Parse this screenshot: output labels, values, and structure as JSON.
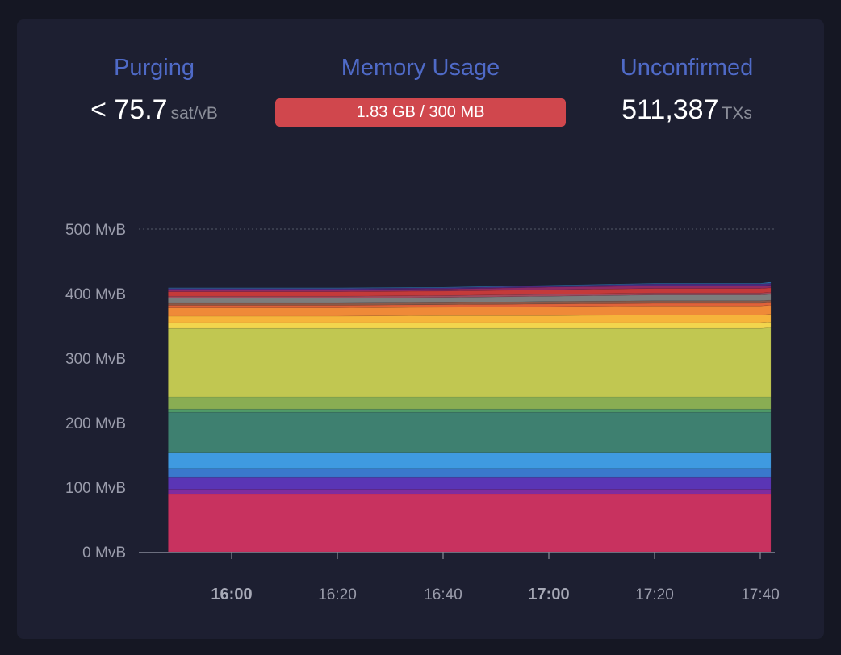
{
  "stats": {
    "purging": {
      "title": "Purging",
      "value": "< 75.7",
      "unit": "sat/vB"
    },
    "memory": {
      "title": "Memory Usage",
      "label": "1.83 GB / 300 MB",
      "used_gb": 1.83,
      "max_mb": 300
    },
    "unconfirmed": {
      "title": "Unconfirmed",
      "value": "511,387",
      "unit": "TXs"
    }
  },
  "colors": {
    "title_accent": "#4f6ac7",
    "memory_bar": "#d0474d",
    "axis_text": "#9a9cab",
    "grid": "#4a4d5e"
  },
  "chart_data": {
    "type": "area",
    "stacked": true,
    "x": [
      "15:48",
      "15:55",
      "16:00",
      "16:20",
      "16:40",
      "17:00",
      "17:20",
      "17:40",
      "17:42"
    ],
    "xticks": [
      "16:00",
      "16:20",
      "16:40",
      "17:00",
      "17:20",
      "17:40"
    ],
    "xticks_bold": [
      "16:00",
      "17:00"
    ],
    "y_unit": "MvB",
    "yticks": [
      "0 MvB",
      "100 MvB",
      "200 MvB",
      "300 MvB",
      "400 MvB",
      "500 MvB"
    ],
    "ylim": [
      0,
      500
    ],
    "grid": "top-only",
    "series": [
      {
        "color": "#c8325f",
        "values": [
          89,
          89,
          89,
          89,
          89,
          89,
          89,
          89,
          89
        ]
      },
      {
        "color": "#7f2c9e",
        "values": [
          8,
          8,
          8,
          8,
          8,
          8,
          8,
          8,
          8
        ]
      },
      {
        "color": "#5a35b5",
        "values": [
          19,
          19,
          19,
          19,
          19,
          19,
          19,
          19,
          19
        ]
      },
      {
        "color": "#3a78cc",
        "values": [
          13,
          13,
          13,
          13,
          13,
          13,
          13,
          13,
          13
        ]
      },
      {
        "color": "#3f9ae0",
        "values": [
          25,
          25,
          25,
          25,
          25,
          25,
          25,
          25,
          25
        ]
      },
      {
        "color": "#3e8070",
        "values": [
          62,
          62,
          62,
          62,
          62,
          62,
          62,
          62,
          62
        ]
      },
      {
        "color": "#4f9a68",
        "values": [
          5,
          5,
          5,
          5,
          5,
          5,
          5,
          5,
          5
        ]
      },
      {
        "color": "#89ad53",
        "values": [
          19,
          19,
          19,
          19,
          19,
          19,
          19,
          19,
          19
        ]
      },
      {
        "color": "#c1c751",
        "values": [
          106,
          106,
          106,
          106,
          106,
          106,
          106,
          106,
          107
        ]
      },
      {
        "color": "#f2d54d",
        "values": [
          9,
          9,
          9,
          9,
          9,
          9,
          9,
          9,
          9
        ]
      },
      {
        "color": "#f6b43b",
        "values": [
          10,
          10,
          10,
          10,
          11,
          11,
          12,
          12,
          12
        ]
      },
      {
        "color": "#ef8a38",
        "values": [
          13,
          13,
          13,
          13,
          13,
          14,
          14,
          14,
          14
        ]
      },
      {
        "color": "#e0623a",
        "values": [
          4,
          4,
          4,
          4,
          4,
          4,
          4,
          4,
          4
        ]
      },
      {
        "color": "#8a5a4a",
        "values": [
          3,
          3,
          3,
          3,
          3,
          4,
          4,
          4,
          4
        ]
      },
      {
        "color": "#7d7d7d",
        "values": [
          8,
          8,
          8,
          8,
          8,
          8,
          9,
          9,
          9
        ]
      },
      {
        "color": "#a14a5e",
        "values": [
          3,
          3,
          3,
          3,
          3,
          3,
          3,
          3,
          3
        ]
      },
      {
        "color": "#c43a3a",
        "values": [
          7,
          7,
          7,
          7,
          7,
          7,
          7,
          7,
          7
        ]
      },
      {
        "color": "#8e2a63",
        "values": [
          3,
          3,
          3,
          3,
          3,
          4,
          4,
          4,
          4
        ]
      },
      {
        "color": "#4b2b7e",
        "values": [
          2,
          2,
          2,
          2,
          2,
          2,
          3,
          3,
          3
        ]
      },
      {
        "color": "#2d6fa6",
        "values": [
          1,
          1,
          1,
          1,
          1,
          1,
          1,
          1,
          2
        ]
      }
    ]
  }
}
